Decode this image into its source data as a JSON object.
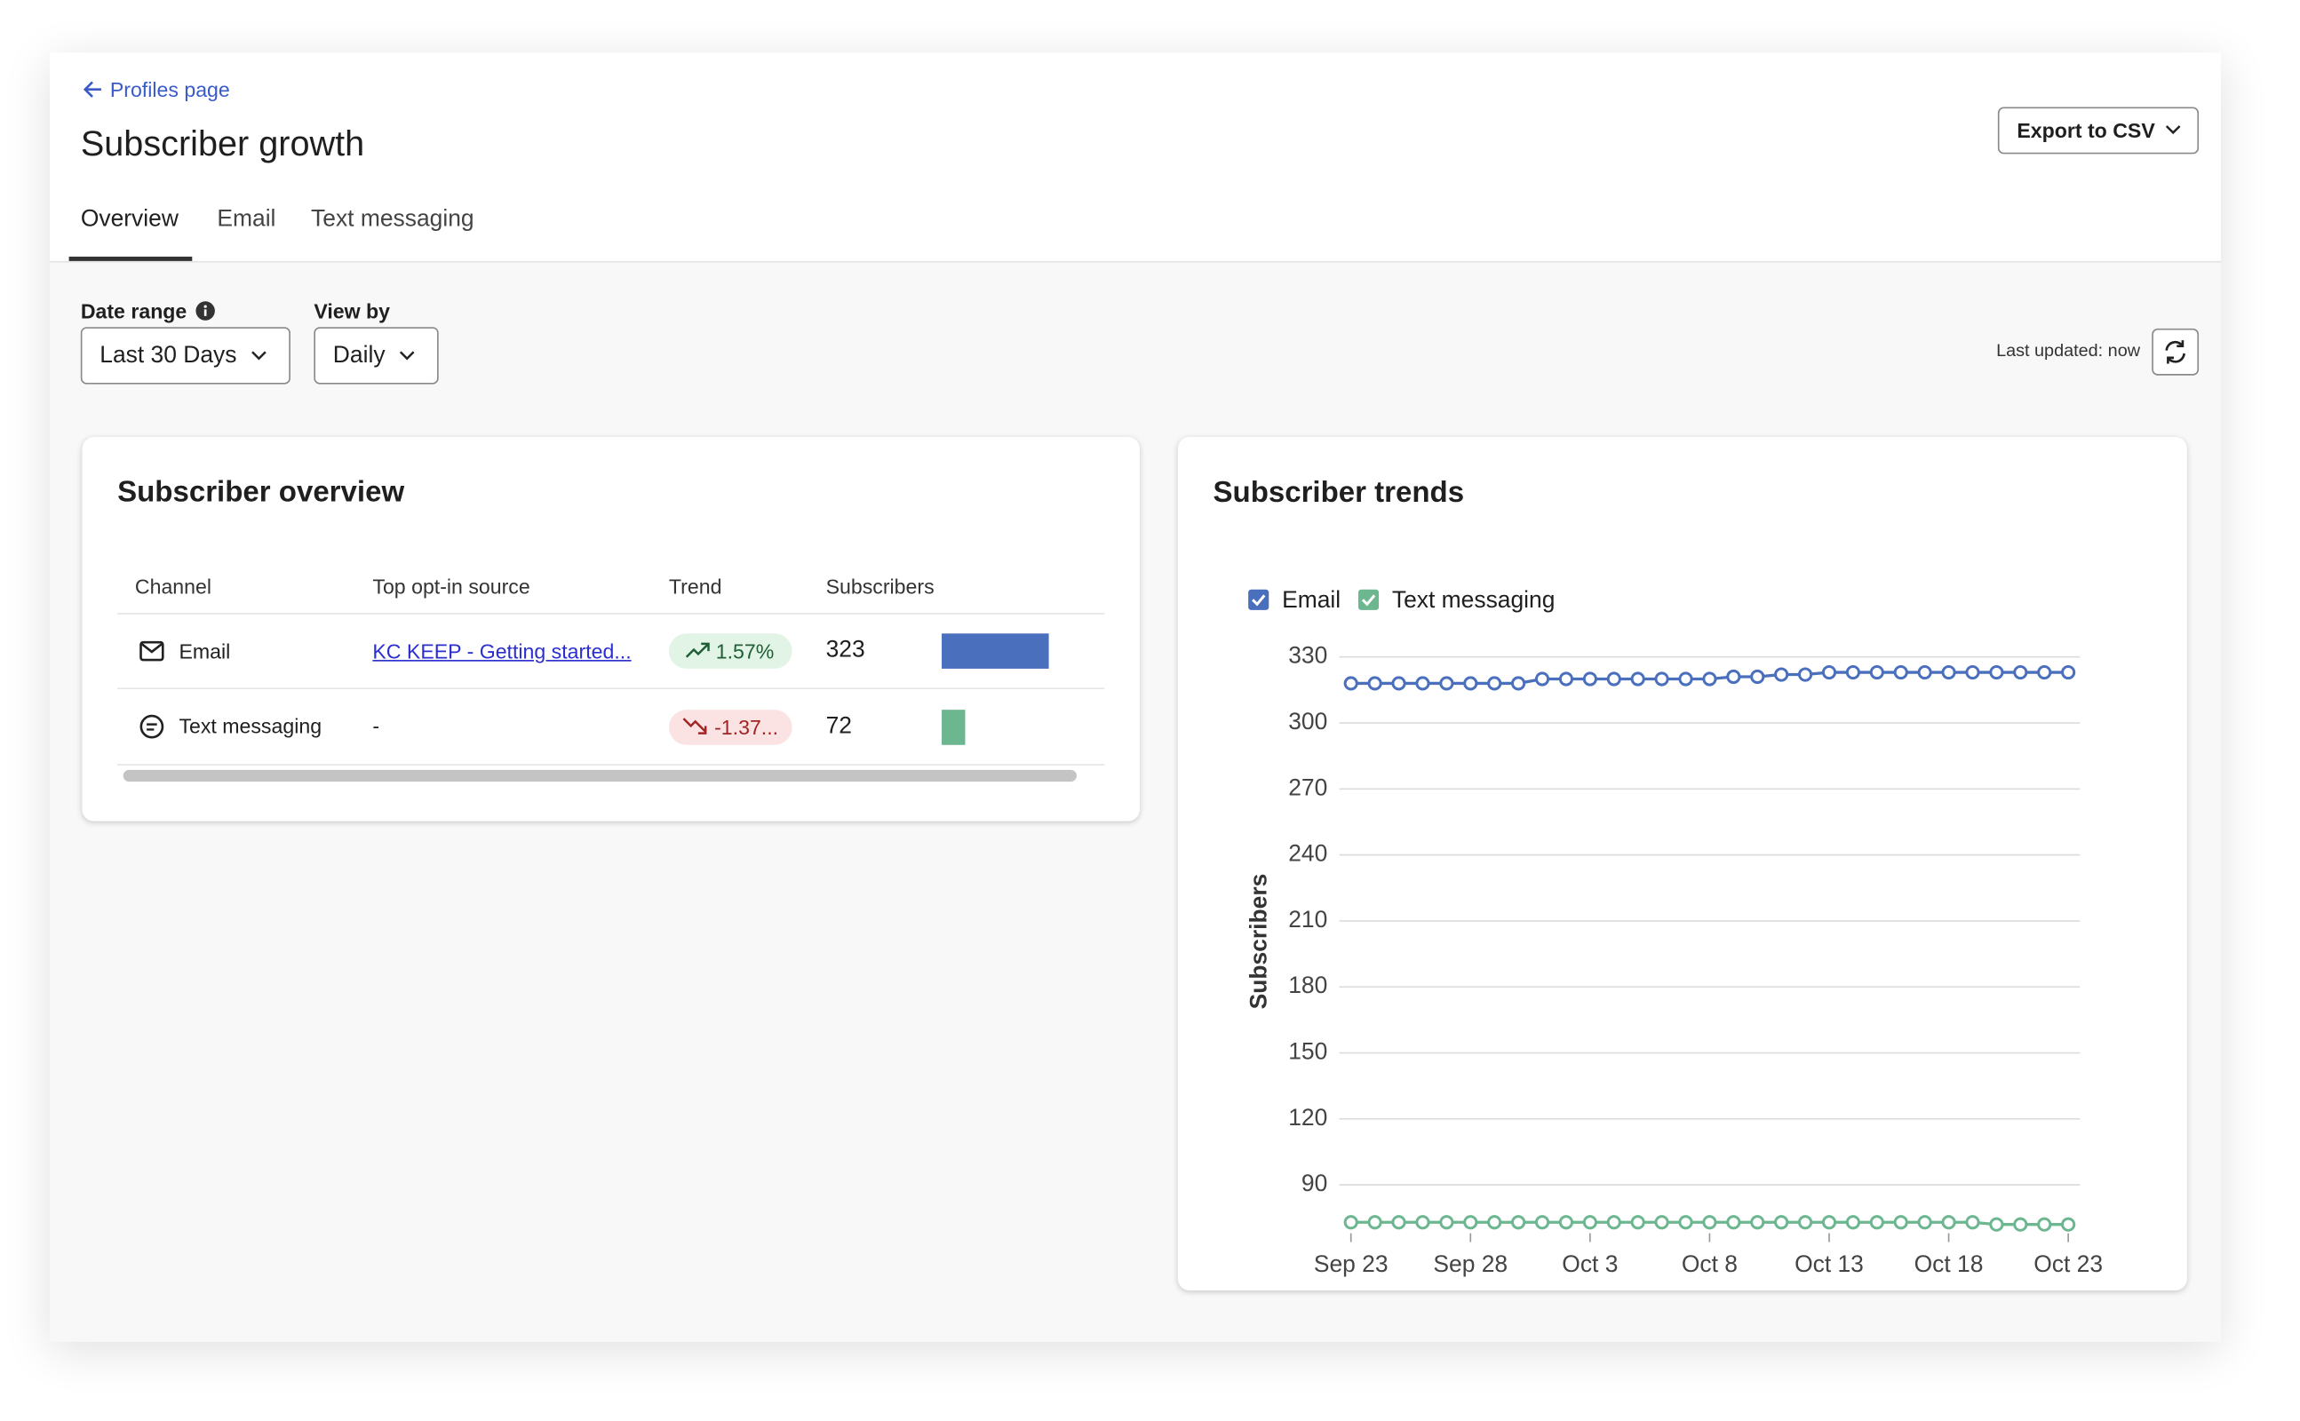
{
  "header": {
    "back_link": "Profiles page",
    "title": "Subscriber growth",
    "export_button": "Export to CSV",
    "tabs": [
      "Overview",
      "Email",
      "Text messaging"
    ]
  },
  "filters": {
    "date_range": {
      "label": "Date range",
      "value": "Last 30 Days"
    },
    "view_by": {
      "label": "View by",
      "value": "Daily"
    },
    "last_updated": "Last updated: now"
  },
  "overview": {
    "title": "Subscriber overview",
    "columns": [
      "Channel",
      "Top opt-in source",
      "Trend",
      "Subscribers"
    ],
    "rows": [
      {
        "channel": "Email",
        "source": "KC KEEP - Getting started...",
        "trend": "1.57%",
        "subscribers": 323,
        "color": "#4a6fbd"
      },
      {
        "channel": "Text messaging",
        "source": "-",
        "trend": "-1.37...",
        "subscribers": 72,
        "color": "#6cb690"
      }
    ]
  },
  "chart_data": {
    "type": "line",
    "title": "Subscriber trends",
    "y_label": "Subscribers",
    "categories": [
      "Sep 23",
      null,
      null,
      null,
      null,
      "Sep 28",
      null,
      null,
      null,
      null,
      "Oct 3",
      null,
      null,
      null,
      null,
      "Oct 8",
      null,
      null,
      null,
      null,
      "Oct 13",
      null,
      null,
      null,
      null,
      "Oct 18",
      null,
      null,
      null,
      null,
      "Oct 23"
    ],
    "series": [
      {
        "name": "Email",
        "color": "#4a6fbd",
        "values": [
          318,
          318,
          318,
          318,
          318,
          318,
          318,
          318,
          320,
          320,
          320,
          320,
          320,
          320,
          320,
          320,
          321,
          321,
          322,
          322,
          323,
          323,
          323,
          323,
          323,
          323,
          323,
          323,
          323,
          323,
          323
        ]
      },
      {
        "name": "Text messaging",
        "color": "#6cb690",
        "values": [
          73,
          73,
          73,
          73,
          73,
          73,
          73,
          73,
          73,
          73,
          73,
          73,
          73,
          73,
          73,
          73,
          73,
          73,
          73,
          73,
          73,
          73,
          73,
          73,
          73,
          73,
          73,
          72,
          72,
          72,
          72
        ]
      }
    ],
    "ylim": [
      67,
      330
    ],
    "yticks": [
      90,
      120,
      150,
      180,
      210,
      240,
      270,
      300,
      330
    ],
    "grid": true
  }
}
